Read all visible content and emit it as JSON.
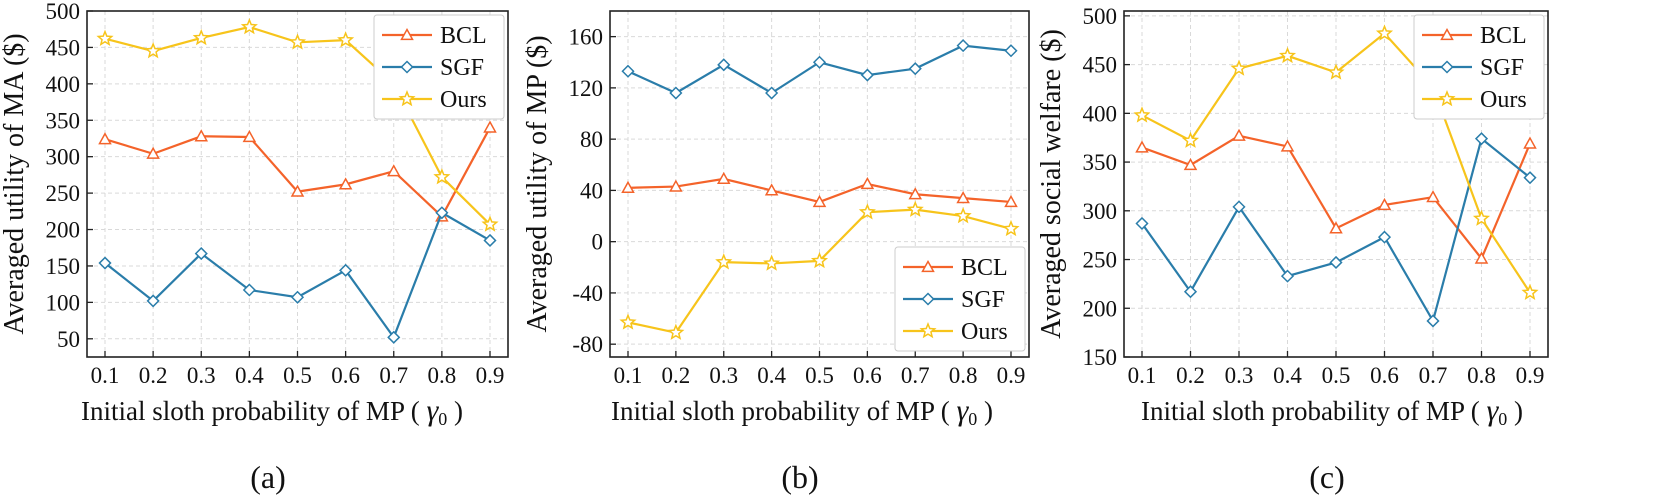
{
  "chart_data": [
    {
      "type": "line",
      "caption": "(a)",
      "xlabel": "Initial sloth probability of MP (",
      "xlabel_symbol": "γ",
      "xlabel_subscript": "0",
      "xlabel_close": ")",
      "ylabel": "Averaged utility of MA ($)",
      "categories": [
        "0.1",
        "0.2",
        "0.3",
        "0.4",
        "0.5",
        "0.6",
        "0.7",
        "0.8",
        "0.9"
      ],
      "ylim": [
        25,
        500
      ],
      "yticks": [
        50,
        100,
        150,
        200,
        250,
        300,
        350,
        400,
        450,
        500
      ],
      "yticklabels": [
        "50",
        "100",
        "150",
        "200",
        "250",
        "300",
        "350",
        "400",
        "450",
        "500"
      ],
      "legend_position": "top-right",
      "series": [
        {
          "name": "BCL",
          "marker": "triangle",
          "color": "#F4632A",
          "values": [
            324,
            304,
            328,
            327,
            252,
            262,
            280,
            218,
            340
          ]
        },
        {
          "name": "SGF",
          "marker": "diamond",
          "color": "#2A7DAA",
          "values": [
            154,
            102,
            167,
            117,
            107,
            144,
            52,
            223,
            185
          ]
        },
        {
          "name": "Ours",
          "marker": "star",
          "color": "#F7C41B",
          "values": [
            462,
            445,
            463,
            478,
            457,
            460,
            400,
            272,
            207
          ]
        }
      ]
    },
    {
      "type": "line",
      "caption": "(b)",
      "xlabel": "Initial sloth probability of MP (",
      "xlabel_symbol": "γ",
      "xlabel_subscript": "0",
      "xlabel_close": ")",
      "ylabel": "Averaged utility of MP ($)",
      "categories": [
        "0.1",
        "0.2",
        "0.3",
        "0.4",
        "0.5",
        "0.6",
        "0.7",
        "0.8",
        "0.9"
      ],
      "ylim": [
        -90,
        180
      ],
      "yticks": [
        -80,
        -40,
        0,
        40,
        80,
        120,
        160
      ],
      "yticklabels": [
        "-80",
        "-40",
        "0",
        "40",
        "80",
        "120",
        "160"
      ],
      "legend_position": "bottom-right",
      "series": [
        {
          "name": "BCL",
          "marker": "triangle",
          "color": "#F4632A",
          "values": [
            42,
            43,
            49,
            40,
            31,
            45,
            37,
            34,
            31
          ]
        },
        {
          "name": "SGF",
          "marker": "diamond",
          "color": "#2A7DAA",
          "values": [
            133,
            116,
            138,
            116,
            140,
            130,
            135,
            153,
            149
          ]
        },
        {
          "name": "Ours",
          "marker": "star",
          "color": "#F7C41B",
          "values": [
            -63,
            -71,
            -16,
            -17,
            -15,
            23,
            25,
            20,
            10
          ]
        }
      ]
    },
    {
      "type": "line",
      "caption": "(c)",
      "xlabel": "Initial sloth probability of MP (",
      "xlabel_symbol": "γ",
      "xlabel_subscript": "0",
      "xlabel_close": ")",
      "ylabel": "Averaged social welfare ($)",
      "categories": [
        "0.1",
        "0.2",
        "0.3",
        "0.4",
        "0.5",
        "0.6",
        "0.7",
        "0.8",
        "0.9"
      ],
      "ylim": [
        150,
        505
      ],
      "yticks": [
        150,
        200,
        250,
        300,
        350,
        400,
        450,
        500
      ],
      "yticklabels": [
        "150",
        "200",
        "250",
        "300",
        "350",
        "400",
        "450",
        "500"
      ],
      "legend_position": "top-right",
      "series": [
        {
          "name": "BCL",
          "marker": "triangle",
          "color": "#F4632A",
          "values": [
            365,
            347,
            377,
            366,
            282,
            306,
            314,
            251,
            369
          ]
        },
        {
          "name": "SGF",
          "marker": "diamond",
          "color": "#2A7DAA",
          "values": [
            287,
            217,
            304,
            233,
            247,
            273,
            187,
            374,
            334
          ]
        },
        {
          "name": "Ours",
          "marker": "star",
          "color": "#F7C41B",
          "values": [
            398,
            372,
            446,
            459,
            442,
            482,
            427,
            292,
            216
          ]
        }
      ]
    }
  ]
}
